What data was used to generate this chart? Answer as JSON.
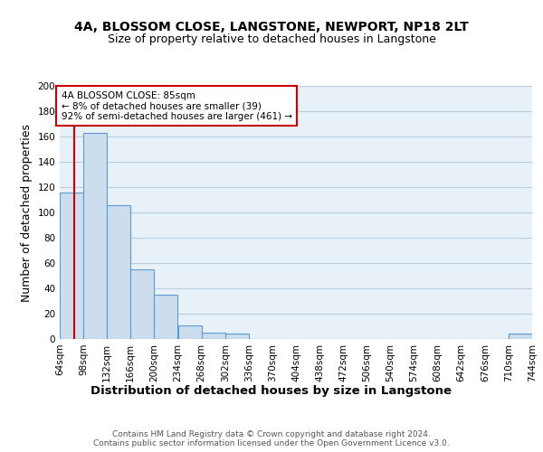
{
  "title1": "4A, BLOSSOM CLOSE, LANGSTONE, NEWPORT, NP18 2LT",
  "title2": "Size of property relative to detached houses in Langstone",
  "xlabel": "Distribution of detached houses by size in Langstone",
  "ylabel": "Number of detached properties",
  "footer": "Contains HM Land Registry data © Crown copyright and database right 2024.\nContains public sector information licensed under the Open Government Licence v3.0.",
  "bin_edges": [
    64,
    98,
    132,
    166,
    200,
    234,
    268,
    302,
    336,
    370,
    404,
    438,
    472,
    506,
    540,
    574,
    608,
    642,
    676,
    710,
    744
  ],
  "bar_values": [
    116,
    163,
    106,
    55,
    35,
    11,
    5,
    4,
    0,
    0,
    0,
    0,
    0,
    0,
    0,
    0,
    0,
    0,
    0,
    4
  ],
  "bar_color": "#ccdded",
  "bar_edge_color": "#5b9bd5",
  "property_size": 85,
  "red_line_color": "#cc0000",
  "annotation_text": "4A BLOSSOM CLOSE: 85sqm\n← 8% of detached houses are smaller (39)\n92% of semi-detached houses are larger (461) →",
  "annotation_box_color": "#ffffff",
  "annotation_box_edge": "#cc0000",
  "ylim": [
    0,
    200
  ],
  "yticks": [
    0,
    20,
    40,
    60,
    80,
    100,
    120,
    140,
    160,
    180,
    200
  ],
  "grid_color": "#b8cfe0",
  "bg_color": "#e8f0f8",
  "title1_fontsize": 10,
  "title2_fontsize": 9,
  "axis_label_fontsize": 9,
  "tick_fontsize": 7.5,
  "annotation_fontsize": 7.5,
  "footer_fontsize": 6.5
}
